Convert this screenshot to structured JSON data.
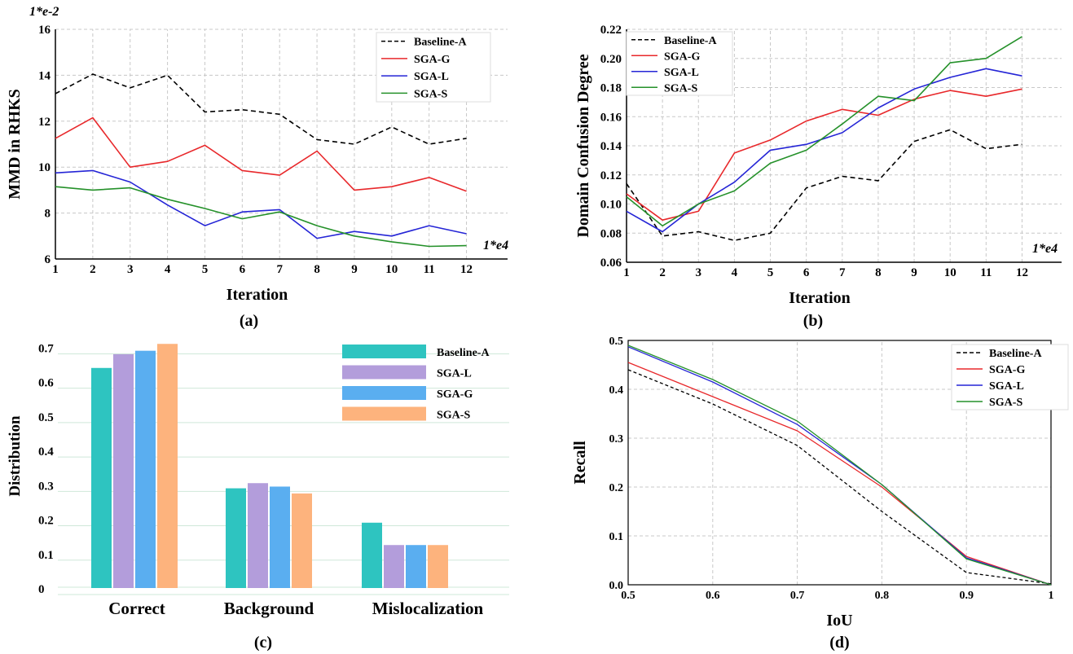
{
  "chart_data": [
    {
      "id": "a",
      "type": "line",
      "subtitle": "(a)",
      "xlabel": "Iteration",
      "ylabel": "MMD in RHKS",
      "x_scale_note": "1*e4",
      "y_scale_note": "1*e-2",
      "x": [
        1,
        2,
        3,
        4,
        5,
        6,
        7,
        8,
        9,
        10,
        11,
        12
      ],
      "xlim": [
        1,
        13.1
      ],
      "ylim": [
        6,
        16
      ],
      "yticks": [
        6,
        8,
        10,
        12,
        14,
        16
      ],
      "grid": true,
      "legend_position": "top-right",
      "series": [
        {
          "name": "Baseline-A",
          "color": "#000000",
          "dashed": true,
          "values": [
            13.2,
            14.05,
            13.45,
            14.0,
            12.4,
            12.5,
            12.3,
            11.2,
            11.0,
            11.75,
            11.0,
            11.25
          ]
        },
        {
          "name": "SGA-G",
          "color": "#e8282b",
          "dashed": false,
          "values": [
            11.25,
            12.15,
            10.0,
            10.25,
            10.95,
            9.85,
            9.65,
            10.7,
            9.0,
            9.15,
            9.55,
            8.95
          ]
        },
        {
          "name": "SGA-L",
          "color": "#2525d6",
          "dashed": false,
          "values": [
            9.75,
            9.85,
            9.35,
            8.35,
            7.45,
            8.05,
            8.15,
            6.9,
            7.2,
            7.0,
            7.45,
            7.1
          ]
        },
        {
          "name": "SGA-S",
          "color": "#25912a",
          "dashed": false,
          "values": [
            9.15,
            9.0,
            9.1,
            8.6,
            8.2,
            7.75,
            8.05,
            7.45,
            7.0,
            6.75,
            6.55,
            6.58
          ]
        }
      ]
    },
    {
      "id": "b",
      "type": "line",
      "subtitle": "(b)",
      "xlabel": "Iteration",
      "ylabel": "Domain Confusion Degree",
      "x_scale_note": "1*e4",
      "x": [
        1,
        2,
        3,
        4,
        5,
        6,
        7,
        8,
        9,
        10,
        11,
        12
      ],
      "xlim": [
        1,
        13.1
      ],
      "ylim": [
        0.06,
        0.22
      ],
      "yticks": [
        "0.06",
        "0.08",
        "0.10",
        "0.12",
        "0.14",
        "0.16",
        "0.18",
        "0.20",
        "0.22"
      ],
      "grid": true,
      "legend_position": "top-left",
      "series": [
        {
          "name": "Baseline-A",
          "color": "#000000",
          "dashed": true,
          "values": [
            0.114,
            0.078,
            0.081,
            0.075,
            0.08,
            0.111,
            0.119,
            0.116,
            0.143,
            0.151,
            0.138,
            0.141
          ]
        },
        {
          "name": "SGA-G",
          "color": "#e8282b",
          "dashed": false,
          "values": [
            0.107,
            0.089,
            0.095,
            0.135,
            0.144,
            0.157,
            0.165,
            0.161,
            0.172,
            0.178,
            0.174,
            0.179
          ]
        },
        {
          "name": "SGA-L",
          "color": "#2525d6",
          "dashed": false,
          "values": [
            0.095,
            0.081,
            0.1,
            0.115,
            0.137,
            0.141,
            0.149,
            0.166,
            0.179,
            0.187,
            0.193,
            0.188
          ]
        },
        {
          "name": "SGA-S",
          "color": "#25912a",
          "dashed": false,
          "values": [
            0.105,
            0.085,
            0.1,
            0.109,
            0.128,
            0.137,
            0.155,
            0.174,
            0.171,
            0.197,
            0.2,
            0.215
          ]
        }
      ]
    },
    {
      "id": "c",
      "type": "bar",
      "subtitle": "(c)",
      "ylabel": "Distribution",
      "categories": [
        "Correct",
        "Background",
        "Mislocalization"
      ],
      "ylim": [
        0,
        0.72
      ],
      "yticks": [
        "0",
        "0.1",
        "0.2",
        "0.3",
        "0.4",
        "0.5",
        "0.6",
        "0.7"
      ],
      "grid": true,
      "legend_position": "top-right",
      "series": [
        {
          "name": "Baseline-A",
          "color": "#2ec4c0",
          "values": [
            0.64,
            0.29,
            0.19
          ]
        },
        {
          "name": "SGA-L",
          "color": "#b39ddb",
          "values": [
            0.68,
            0.305,
            0.125
          ]
        },
        {
          "name": "SGA-G",
          "color": "#5aaef0",
          "values": [
            0.69,
            0.295,
            0.125
          ]
        },
        {
          "name": "SGA-S",
          "color": "#fdb37d",
          "values": [
            0.71,
            0.275,
            0.125
          ]
        }
      ]
    },
    {
      "id": "d",
      "type": "line",
      "subtitle": "(d)",
      "xlabel": "IoU",
      "ylabel": "Recall",
      "x": [
        0.5,
        0.6,
        0.7,
        0.8,
        0.9,
        1.0
      ],
      "xticks": [
        "0.5",
        "0.6",
        "0.7",
        "0.8",
        "0.9",
        "1"
      ],
      "xlim": [
        0.5,
        1.0
      ],
      "ylim": [
        0,
        0.5
      ],
      "yticks": [
        "0.0",
        "0.1",
        "0.2",
        "0.3",
        "0.4",
        "0.5"
      ],
      "grid": true,
      "legend_position": "top-right",
      "series": [
        {
          "name": "Baseline-A",
          "color": "#000000",
          "dashed": true,
          "values": [
            0.44,
            0.37,
            0.285,
            0.15,
            0.025,
            0.002
          ]
        },
        {
          "name": "SGA-G",
          "color": "#e8282b",
          "dashed": false,
          "values": [
            0.455,
            0.385,
            0.315,
            0.2,
            0.058,
            0.0
          ]
        },
        {
          "name": "SGA-L",
          "color": "#2525d6",
          "dashed": false,
          "values": [
            0.487,
            0.415,
            0.328,
            0.205,
            0.055,
            0.0
          ]
        },
        {
          "name": "SGA-S",
          "color": "#25912a",
          "dashed": false,
          "values": [
            0.49,
            0.42,
            0.335,
            0.205,
            0.053,
            0.0
          ]
        }
      ]
    }
  ]
}
